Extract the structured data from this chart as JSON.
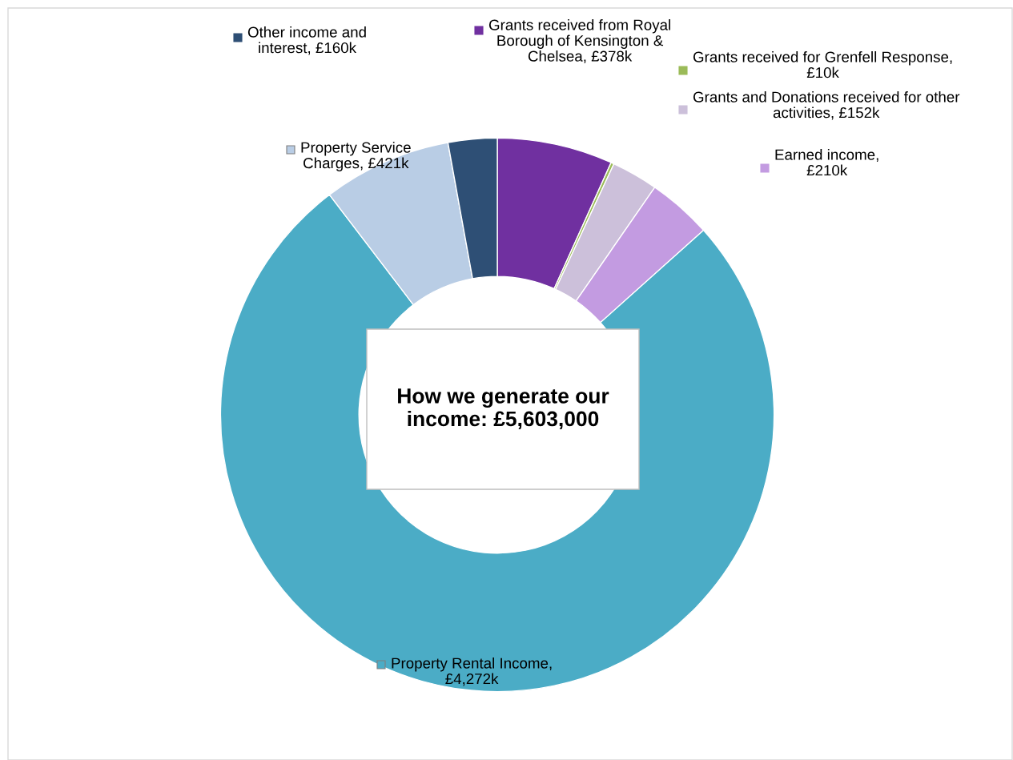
{
  "chart_data": {
    "type": "donut",
    "title": "How we generate our income: £5,603,000",
    "categories": [
      "Grants received from Royal Borough of Kensington & Chelsea, £378k",
      "Grants received for Grenfell Response, £10k",
      "Grants and Donations received for other activities, £152k",
      "Earned income, £210k",
      "Property Rental Income, £4,272k",
      "Property Service Charges, £421k",
      "Other income and interest, £160k"
    ],
    "values": [
      378,
      10,
      152,
      210,
      4272,
      421,
      160
    ],
    "colors": [
      "#7030a0",
      "#9bbb59",
      "#ccc0da",
      "#c39be1",
      "#4bacc6",
      "#b9cde5",
      "#2e4f75"
    ],
    "legend": "top"
  }
}
